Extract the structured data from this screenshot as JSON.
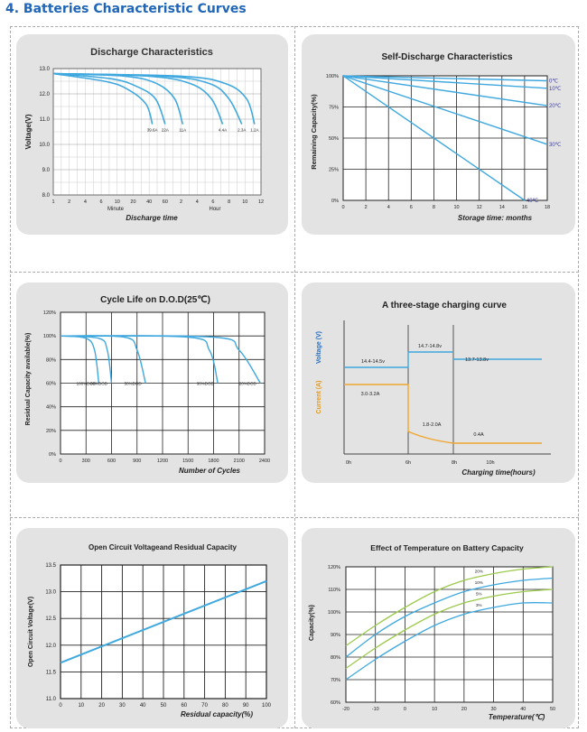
{
  "page": {
    "heading": "4. Batteries Characteristic Curves"
  },
  "chart_data": [
    {
      "type": "line",
      "title": "Discharge Characteristics",
      "ylabel": "Voltage(V)",
      "xlabel": "Discharge time",
      "x_unit_labels": [
        "Minute",
        "Hour"
      ],
      "x_tick_labels": [
        "1",
        "2",
        "4",
        "6",
        "10",
        "20",
        "40",
        "60",
        "2",
        "4",
        "6",
        "8",
        "10",
        "12"
      ],
      "y_ticks": [
        "13.0",
        "12.0",
        "11.0",
        "10.0",
        "9.0",
        "8.0"
      ],
      "ylim": [
        8,
        13
      ],
      "series": [
        {
          "name": "39.6A",
          "points": [
            [
              0,
              12.8
            ],
            [
              3.2,
              12.5
            ],
            [
              4.6,
              12.2
            ],
            [
              5.8,
              11.6
            ],
            [
              6.2,
              10.8
            ]
          ]
        },
        {
          "name": "22A",
          "points": [
            [
              0,
              12.8
            ],
            [
              3.6,
              12.6
            ],
            [
              5.2,
              12.3
            ],
            [
              6.4,
              11.8
            ],
            [
              7,
              10.8
            ]
          ]
        },
        {
          "name": "11A",
          "points": [
            [
              0,
              12.8
            ],
            [
              4.5,
              12.7
            ],
            [
              6.5,
              12.4
            ],
            [
              7.6,
              11.8
            ],
            [
              8.1,
              10.8
            ]
          ]
        },
        {
          "name": "4.4A",
          "points": [
            [
              0,
              12.8
            ],
            [
              6,
              12.7
            ],
            [
              8.6,
              12.4
            ],
            [
              9.9,
              11.8
            ],
            [
              10.6,
              10.8
            ]
          ]
        },
        {
          "name": "2.3A",
          "points": [
            [
              0,
              12.8
            ],
            [
              7,
              12.7
            ],
            [
              9.8,
              12.4
            ],
            [
              11,
              11.8
            ],
            [
              11.8,
              10.8
            ]
          ]
        },
        {
          "name": "1.2A",
          "points": [
            [
              0,
              12.8
            ],
            [
              8,
              12.7
            ],
            [
              10.8,
              12.4
            ],
            [
              12.1,
              11.8
            ],
            [
              12.6,
              10.8
            ]
          ]
        }
      ]
    },
    {
      "type": "line",
      "title": "Self-Discharge Characteristics",
      "ylabel": "Remaining Capacity(%)",
      "xlabel": "Storage time: months",
      "x_ticks": [
        "0",
        "2",
        "4",
        "6",
        "8",
        "10",
        "12",
        "14",
        "16",
        "18"
      ],
      "y_ticks": [
        "100%",
        "75%",
        "50%",
        "25%",
        "0%"
      ],
      "xlim": [
        0,
        18
      ],
      "ylim": [
        0,
        100
      ],
      "series": [
        {
          "name": "0℃",
          "points": [
            [
              0,
              100
            ],
            [
              18,
              96
            ]
          ]
        },
        {
          "name": "10℃",
          "points": [
            [
              0,
              100
            ],
            [
              18,
              90
            ]
          ]
        },
        {
          "name": "20℃",
          "points": [
            [
              0,
              100
            ],
            [
              18,
              76
            ]
          ]
        },
        {
          "name": "30℃",
          "points": [
            [
              0,
              100
            ],
            [
              18,
              45
            ]
          ]
        },
        {
          "name": "40℃",
          "points": [
            [
              0,
              100
            ],
            [
              16,
              0
            ]
          ]
        }
      ]
    },
    {
      "type": "line",
      "title": "Cycle Life on D.O.D(25℃)",
      "ylabel": "Residual Capacity available(%)",
      "xlabel": "Number of Cycles",
      "x_ticks": [
        "0",
        "300",
        "600",
        "900",
        "1200",
        "1500",
        "1800",
        "2100",
        "2400"
      ],
      "y_ticks": [
        "120%",
        "100%",
        "80%",
        "60%",
        "40%",
        "20%",
        "0%"
      ],
      "xlim": [
        0,
        2400
      ],
      "ylim": [
        0,
        120
      ],
      "series": [
        {
          "name": "100%DOD",
          "points": [
            [
              0,
              100
            ],
            [
              300,
              98
            ],
            [
              400,
              88
            ],
            [
              450,
              60
            ]
          ]
        },
        {
          "name": "80%DOD",
          "points": [
            [
              0,
              100
            ],
            [
              450,
              98
            ],
            [
              550,
              88
            ],
            [
              600,
              60
            ]
          ]
        },
        {
          "name": "50%DOD",
          "points": [
            [
              0,
              100
            ],
            [
              750,
              99
            ],
            [
              900,
              88
            ],
            [
              1000,
              60
            ]
          ]
        },
        {
          "name": "30%DOD",
          "points": [
            [
              0,
              100
            ],
            [
              1500,
              99
            ],
            [
              1750,
              88
            ],
            [
              1850,
              60
            ]
          ]
        },
        {
          "name": "20%DOD",
          "points": [
            [
              0,
              100
            ],
            [
              1800,
              99
            ],
            [
              2100,
              88
            ],
            [
              2350,
              60
            ]
          ]
        }
      ],
      "annotations": [
        "100%DOD",
        "80%DOD",
        "50%DOD",
        "30%DOD",
        "20%DOD"
      ]
    },
    {
      "type": "line",
      "title": "A three-stage charging curve",
      "ylabel_voltage": "Voltage (V)",
      "ylabel_current": "Current (A)",
      "xlabel": "Charging time(hours)",
      "x_ticks": [
        "0h",
        "6h",
        "8h",
        "10h"
      ],
      "annotations": [
        "14.7-14.8v",
        "14.4-14.5v",
        "13.7-13.8v",
        "3.0-3.2A",
        "1.8-2.0A",
        "0.4A"
      ]
    },
    {
      "type": "line",
      "title": "Open Circuit Voltageand Residual Capacity",
      "ylabel": "Open Circuit Voltage(V)",
      "xlabel": "Residual capacity(%)",
      "x_ticks": [
        "0",
        "10",
        "20",
        "30",
        "40",
        "50",
        "60",
        "70",
        "80",
        "90",
        "100"
      ],
      "y_ticks": [
        "13.5",
        "13.0",
        "12.5",
        "12.0",
        "11.5",
        "11.0"
      ],
      "xlim": [
        0,
        100
      ],
      "ylim": [
        11,
        13.5
      ],
      "series": [
        {
          "name": "",
          "points": [
            [
              0,
              11.67
            ],
            [
              100,
              13.2
            ]
          ]
        }
      ]
    },
    {
      "type": "line",
      "title": "Effect of Temperature on Battery Capacity",
      "ylabel": "Capacity(%)",
      "xlabel": "Temperature(℃)",
      "x_ticks": [
        "-20",
        "-10",
        "0",
        "10",
        "20",
        "30",
        "40",
        "50"
      ],
      "y_ticks": [
        "120%",
        "110%",
        "100%",
        "90%",
        "80%",
        "70%",
        "60%"
      ],
      "xlim": [
        -20,
        50
      ],
      "ylim": [
        60,
        120
      ],
      "series": [
        {
          "name": "20%",
          "color": "#9cc94c",
          "points": [
            [
              -20,
              85
            ],
            [
              -10,
              94
            ],
            [
              0,
              102
            ],
            [
              10,
              109
            ],
            [
              20,
              114
            ],
            [
              30,
              117
            ],
            [
              40,
              119
            ],
            [
              50,
              120
            ]
          ]
        },
        {
          "name": "10%",
          "color": "#3ea8df",
          "points": [
            [
              -20,
              80
            ],
            [
              -10,
              90
            ],
            [
              0,
              98
            ],
            [
              10,
              104
            ],
            [
              20,
              109
            ],
            [
              30,
              112
            ],
            [
              40,
              114
            ],
            [
              50,
              115
            ]
          ]
        },
        {
          "name": "5%",
          "color": "#9cc94c",
          "points": [
            [
              -20,
              75
            ],
            [
              -10,
              84
            ],
            [
              0,
              92
            ],
            [
              10,
              99
            ],
            [
              20,
              104
            ],
            [
              30,
              107
            ],
            [
              40,
              109
            ],
            [
              50,
              110
            ]
          ]
        },
        {
          "name": "3%",
          "color": "#3ea8df",
          "points": [
            [
              -20,
              70
            ],
            [
              -10,
              79
            ],
            [
              0,
              87
            ],
            [
              10,
              94
            ],
            [
              20,
              99
            ],
            [
              30,
              102
            ],
            [
              40,
              104
            ],
            [
              50,
              104
            ]
          ]
        }
      ]
    }
  ]
}
